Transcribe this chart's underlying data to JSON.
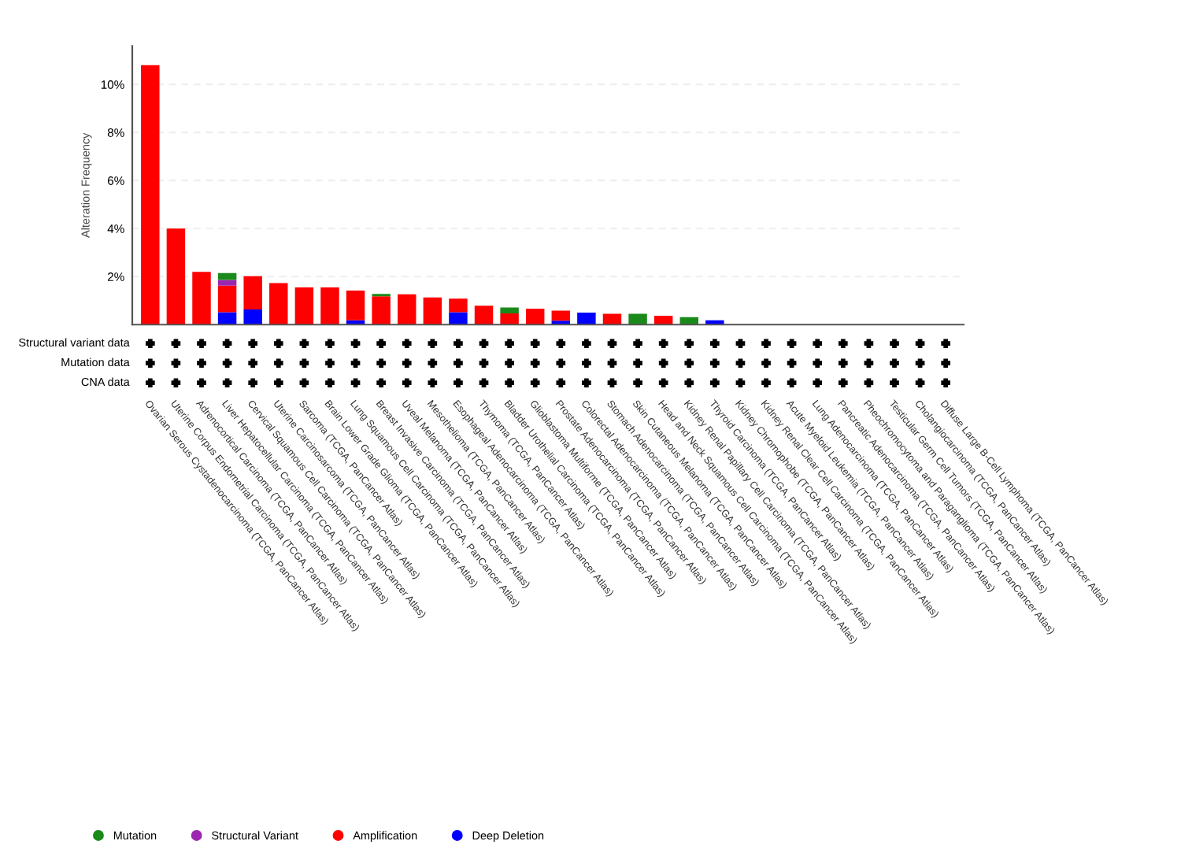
{
  "chart_data": {
    "type": "bar",
    "stacked": true,
    "ylabel": "Alteration Frequency",
    "categories": [
      "Ovarian Serous Cystadenocarcinoma (TCGA, PanCancer Atlas)",
      "Uterine Corpus Endometrial Carcinoma (TCGA, PanCancer Atlas)",
      "Adrenocortical Carcinoma (TCGA, PanCancer Atlas)",
      "Liver Hepatocellular Carcinoma (TCGA, PanCancer Atlas)",
      "Cervical Squamous Cell Carcinoma (TCGA, PanCancer Atlas)",
      "Uterine Carcinosarcoma (TCGA, PanCancer Atlas)",
      "Sarcoma (TCGA, PanCancer Atlas)",
      "Brain Lower Grade Glioma (TCGA, PanCancer Atlas)",
      "Lung Squamous Cell Carcinoma (TCGA, PanCancer Atlas)",
      "Breast Invasive Carcinoma (TCGA, PanCancer Atlas)",
      "Uveal Melanoma (TCGA, PanCancer Atlas)",
      "Mesothelioma (TCGA, PanCancer Atlas)",
      "Esophageal Adenocarcinoma (TCGA, PanCancer Atlas)",
      "Thymoma (TCGA, PanCancer Atlas)",
      "Bladder Urothelial Carcinoma (TCGA, PanCancer Atlas)",
      "Glioblastoma Multiforme (TCGA, PanCancer Atlas)",
      "Prostate Adenocarcinoma (TCGA, PanCancer Atlas)",
      "Colorectal Adenocarcinoma (TCGA, PanCancer Atlas)",
      "Stomach Adenocarcinoma (TCGA, PanCancer Atlas)",
      "Skin Cutaneous Melanoma (TCGA, PanCancer Atlas)",
      "Head and Neck Squamous Cell Carcinoma (TCGA, PanCancer Atlas)",
      "Kidney Renal Papillary Cell Carcinoma (TCGA, PanCancer Atlas)",
      "Thyroid Carcinoma (TCGA, PanCancer Atlas)",
      "Kidney Chromophobe (TCGA, PanCancer Atlas)",
      "Kidney Renal Clear Cell Carcinoma (TCGA, PanCancer Atlas)",
      "Acute Myeloid Leukemia (TCGA, PanCancer Atlas)",
      "Lung Adenocarcinoma (TCGA, PanCancer Atlas)",
      "Pancreatic Adenocarcinoma (TCGA, PanCancer Atlas)",
      "Pheochromocytoma and Paraganglioma (TCGA, PanCancer Atlas)",
      "Testicular Germ Cell Tumors (TCGA, PanCancer Atlas)",
      "Cholangiocarcinoma (TCGA, PanCancer Atlas)",
      "Diffuse Large B-Cell Lymphoma (TCGA, PanCancer Atlas)"
    ],
    "series": [
      {
        "name": "Deep Deletion",
        "color": "#0000ff",
        "values": [
          0,
          0,
          0,
          0.52,
          0.63,
          0,
          0,
          0,
          0.18,
          0,
          0,
          0,
          0.52,
          0,
          0,
          0,
          0.16,
          0.5,
          0,
          0,
          0,
          0,
          0.18,
          0,
          0,
          0,
          0,
          0,
          0,
          0,
          0,
          0
        ]
      },
      {
        "name": "Amplification",
        "color": "#ff0000",
        "values": [
          10.8,
          4.0,
          2.2,
          1.1,
          1.39,
          1.73,
          1.55,
          1.55,
          1.24,
          1.18,
          1.26,
          1.13,
          0.56,
          0.79,
          0.47,
          0.66,
          0.42,
          0,
          0.45,
          0,
          0.37,
          0,
          0,
          0,
          0,
          0,
          0,
          0,
          0,
          0,
          0,
          0
        ]
      },
      {
        "name": "Structural Variant",
        "color": "#9b27b0",
        "values": [
          0,
          0,
          0,
          0.24,
          0,
          0,
          0,
          0,
          0,
          0,
          0,
          0,
          0,
          0,
          0,
          0,
          0,
          0,
          0,
          0,
          0,
          0,
          0,
          0,
          0,
          0,
          0,
          0,
          0,
          0,
          0,
          0
        ]
      },
      {
        "name": "Mutation",
        "color": "#1a8a1a",
        "values": [
          0,
          0,
          0,
          0.29,
          0,
          0,
          0,
          0,
          0,
          0.1,
          0,
          0,
          0,
          0,
          0.24,
          0,
          0,
          0,
          0,
          0.45,
          0,
          0.31,
          0,
          0,
          0,
          0,
          0,
          0,
          0,
          0,
          0,
          0
        ]
      }
    ],
    "ylim": [
      0,
      11.6
    ],
    "yticks": [
      {
        "value": 2,
        "label": "2%"
      },
      {
        "value": 4,
        "label": "4%"
      },
      {
        "value": 6,
        "label": "6%"
      },
      {
        "value": 8,
        "label": "8%"
      },
      {
        "value": 10,
        "label": "10%"
      }
    ],
    "grid": "y",
    "legend": "bottom",
    "annotations": [
      "Structural variant data",
      "Mutation data",
      "CNA data"
    ]
  }
}
